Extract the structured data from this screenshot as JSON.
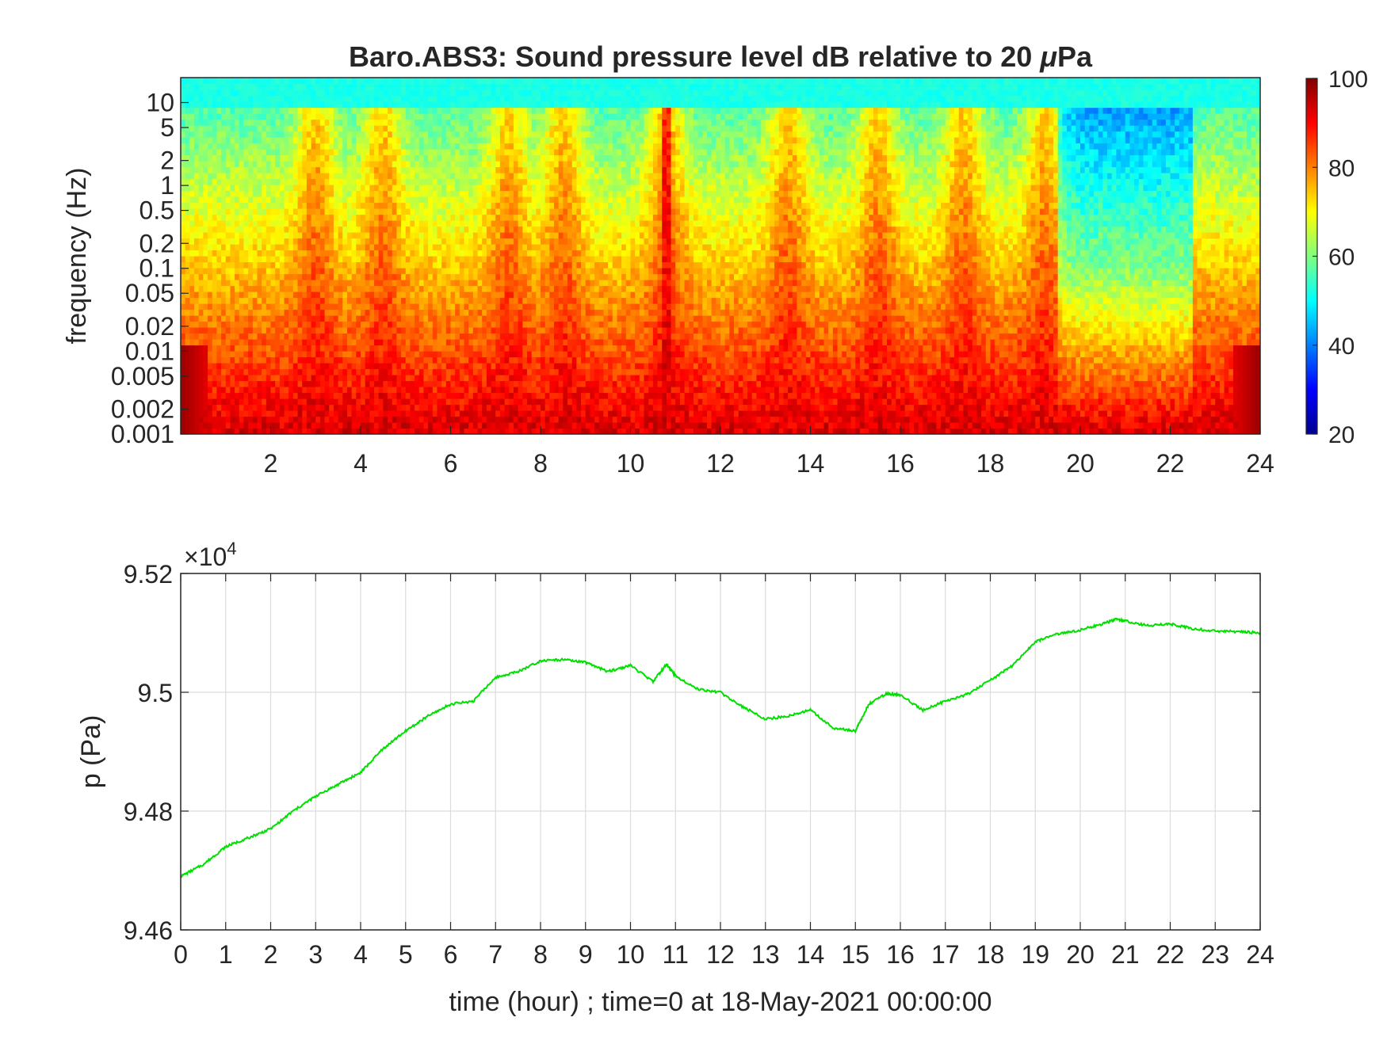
{
  "chart_data": [
    {
      "type": "heatmap",
      "title": "Baro.ABS3: Sound pressure level dB relative to 20 μPa",
      "title_text": "Baro.ABS3: Sound pressure level dB relative to 20 ",
      "title_mu": "μ",
      "title_unit": "Pa",
      "xlabel": "",
      "ylabel": "frequency (Hz)",
      "xlim": [
        0,
        24
      ],
      "x_ticks": [
        "2",
        "4",
        "6",
        "8",
        "10",
        "12",
        "14",
        "16",
        "18",
        "20",
        "22",
        "24"
      ],
      "y_scale": "log",
      "ylim": [
        0.001,
        20
      ],
      "y_ticks": [
        "0.001",
        "0.002",
        "0.005",
        "0.01",
        "0.02",
        "0.05",
        "0.1",
        "0.2",
        "0.5",
        "1",
        "2",
        "5",
        "10"
      ],
      "colormap": "jet",
      "colorbar": {
        "min": 20,
        "max": 100,
        "ticks": [
          "20",
          "40",
          "60",
          "80",
          "100"
        ]
      },
      "activity_peaks_hour": [
        3,
        4.5,
        7.3,
        8.5,
        10.8,
        13.5,
        15.5,
        17.4,
        19.2
      ],
      "quiet_period_hour": [
        19.5,
        22.5
      ]
    },
    {
      "type": "line",
      "xlabel": "time (hour) ; time=0 at 18-May-2021 00:00:00",
      "ylabel": "p (Pa)",
      "y_multiplier": "×10",
      "y_multiplier_exp": "4",
      "xlim": [
        0,
        24
      ],
      "ylim": [
        94600,
        95200
      ],
      "x_ticks": [
        "0",
        "1",
        "2",
        "3",
        "4",
        "5",
        "6",
        "7",
        "8",
        "9",
        "10",
        "11",
        "12",
        "13",
        "14",
        "15",
        "16",
        "17",
        "18",
        "19",
        "20",
        "21",
        "22",
        "23",
        "24"
      ],
      "y_ticks": [
        "9.46",
        "9.48",
        "9.5",
        "9.52"
      ],
      "grid": true,
      "color": "#00e000",
      "series": [
        {
          "x": [
            0,
            0.5,
            1,
            1.5,
            2,
            2.5,
            3,
            3.5,
            4,
            4.5,
            5,
            5.5,
            6,
            6.5,
            7,
            7.5,
            8,
            8.5,
            9,
            9.5,
            10,
            10.5,
            10.8,
            11,
            11.5,
            12,
            12.5,
            13,
            13.5,
            14,
            14.5,
            15,
            15.3,
            15.7,
            16,
            16.5,
            17,
            17.5,
            18,
            18.5,
            19,
            19.5,
            20,
            20.5,
            20.8,
            21,
            21.5,
            22,
            22.5,
            23,
            23.5,
            24
          ],
          "y": [
            94690,
            94710,
            94740,
            94755,
            94770,
            94800,
            94825,
            94845,
            94865,
            94905,
            94935,
            94960,
            94980,
            94985,
            95025,
            95035,
            95053,
            95055,
            95050,
            95035,
            95045,
            95018,
            95047,
            95028,
            95005,
            95000,
            94975,
            94955,
            94960,
            94970,
            94940,
            94935,
            94980,
            94998,
            94995,
            94970,
            94985,
            94997,
            95020,
            95045,
            95085,
            95098,
            95105,
            95115,
            95123,
            95120,
            95112,
            95115,
            95107,
            95103,
            95102,
            95100
          ]
        }
      ]
    }
  ]
}
